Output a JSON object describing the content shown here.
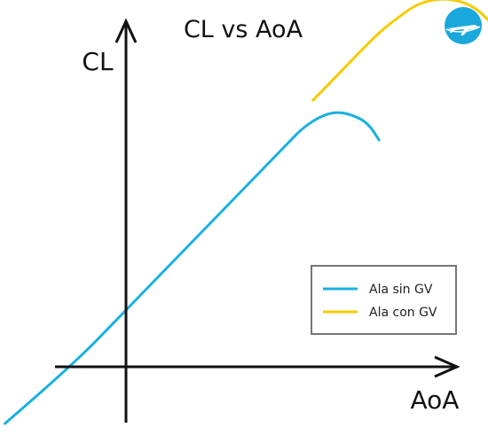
{
  "chart_data": {
    "type": "line",
    "title": "CL vs AoA",
    "xlabel": "AoA",
    "ylabel": "CL",
    "xlim": [
      -2,
      7.5
    ],
    "ylim": [
      -1,
      7
    ],
    "grid": false,
    "legend": {
      "placement": "right"
    },
    "series": [
      {
        "name": "Ala sin GV",
        "color": "#1ab0e0",
        "points": [
          [
            -2.2,
            -1.0
          ],
          [
            -1.0,
            0.0
          ],
          [
            0.0,
            1.0
          ],
          [
            1.0,
            2.0
          ],
          [
            2.0,
            3.0
          ],
          [
            3.0,
            4.0
          ],
          [
            3.2,
            4.2
          ],
          [
            3.5,
            4.4
          ],
          [
            3.8,
            4.5
          ],
          [
            4.1,
            4.45
          ],
          [
            4.4,
            4.3
          ],
          [
            4.6,
            4.0
          ]
        ]
      },
      {
        "name": "Ala con GV",
        "color": "#f5cc00",
        "points": [
          [
            3.4,
            4.7
          ],
          [
            4.0,
            5.3
          ],
          [
            4.6,
            5.9
          ],
          [
            5.0,
            6.2
          ],
          [
            5.3,
            6.4
          ],
          [
            5.7,
            6.5
          ],
          [
            6.1,
            6.45
          ],
          [
            6.4,
            6.3
          ],
          [
            6.7,
            6.0
          ]
        ]
      }
    ]
  },
  "logo": {
    "icon": "airplane-icon",
    "color": "#1aa8dc"
  }
}
